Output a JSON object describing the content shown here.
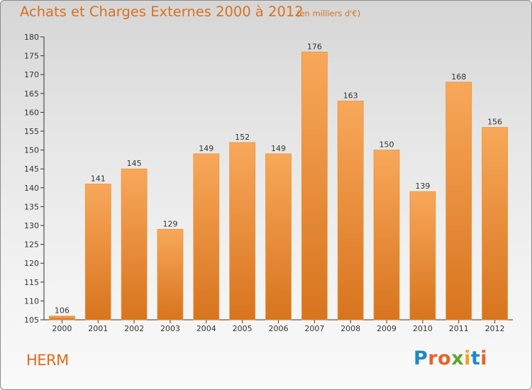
{
  "header": {
    "title": "Achats et Charges Externes 2000 à 2012",
    "unit": "(en milliers d'€)"
  },
  "footer": {
    "commune": "HERM",
    "logo_text": "Proxiti"
  },
  "colors": {
    "bar_light": "#f8a85a",
    "bar_dark": "#d8741e",
    "title": "#d9701e"
  },
  "chart_data": {
    "type": "bar",
    "title": "Achats et Charges Externes 2000 à 2012",
    "subtitle": "(en milliers d'€)",
    "xlabel": "",
    "ylabel": "",
    "categories": [
      "2000",
      "2001",
      "2002",
      "2003",
      "2004",
      "2005",
      "2006",
      "2007",
      "2008",
      "2009",
      "2010",
      "2011",
      "2012"
    ],
    "values": [
      106,
      141,
      145,
      129,
      149,
      152,
      149,
      176,
      163,
      150,
      139,
      168,
      156
    ],
    "ylim": [
      105,
      180
    ],
    "yticks": [
      105,
      110,
      115,
      120,
      125,
      130,
      135,
      140,
      145,
      150,
      155,
      160,
      165,
      170,
      175,
      180
    ],
    "grid": false,
    "legend": "none"
  }
}
